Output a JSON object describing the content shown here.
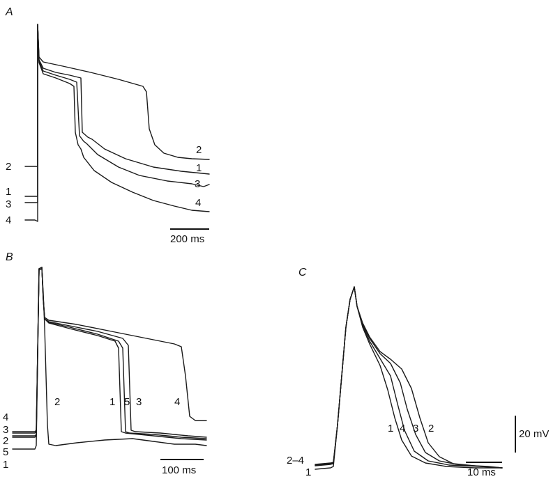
{
  "chart_data": [
    {
      "panel": "A",
      "type": "line",
      "scale_bar": "200 ms",
      "traces": [
        {
          "label": "1",
          "rest_label": "1",
          "end_label": "1"
        },
        {
          "label": "2",
          "rest_label": "2",
          "end_label": "2"
        },
        {
          "label": "3",
          "rest_label": "3",
          "end_label": "3"
        },
        {
          "label": "4",
          "rest_label": "4",
          "end_label": "4"
        }
      ]
    },
    {
      "panel": "B",
      "type": "line",
      "scale_bar": "100 ms",
      "traces": [
        {
          "label": "1",
          "rest_label": "1"
        },
        {
          "label": "2",
          "rest_label": "2"
        },
        {
          "label": "3",
          "rest_label": "3"
        },
        {
          "label": "4",
          "rest_label": "4"
        },
        {
          "label": "5",
          "rest_label": "5"
        }
      ]
    },
    {
      "panel": "C",
      "type": "line",
      "scale_bar": "10 ms",
      "voltage_bar": "20 mV",
      "rest_labels": [
        "2–4",
        "1"
      ],
      "traces": [
        {
          "label": "1"
        },
        {
          "label": "2"
        },
        {
          "label": "3"
        },
        {
          "label": "4"
        }
      ]
    }
  ]
}
